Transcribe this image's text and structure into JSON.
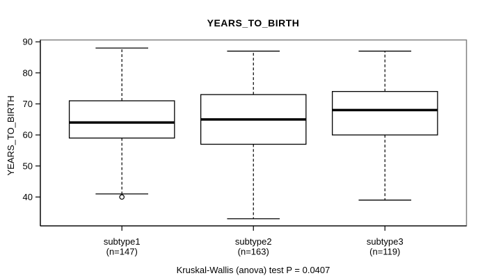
{
  "figure": {
    "title": "YEARS_TO_BIRTH",
    "y_axis_label": "YEARS_TO_BIRTH",
    "caption": "Kruskal-Wallis (anova) test P = 0.0407"
  },
  "chart_data": {
    "type": "boxplot",
    "title": "YEARS_TO_BIRTH",
    "xlabel": "",
    "ylabel": "YEARS_TO_BIRTH",
    "ylim": [
      30.7,
      90.6
    ],
    "yticks": [
      40,
      50,
      60,
      70,
      80,
      90
    ],
    "grid": false,
    "legend": "none",
    "caption": "Kruskal-Wallis (anova) test P = 0.0407",
    "p_value": 0.0407,
    "groups": [
      {
        "label": "subtype1",
        "n_label": "(n=147)",
        "n": 147,
        "whisker_low": 41,
        "q1": 59,
        "median": 64,
        "q3": 71,
        "whisker_high": 88,
        "outliers": [
          40
        ]
      },
      {
        "label": "subtype2",
        "n_label": "(n=163)",
        "n": 163,
        "whisker_low": 33,
        "q1": 57,
        "median": 65,
        "q3": 73,
        "whisker_high": 87,
        "outliers": []
      },
      {
        "label": "subtype3",
        "n_label": "(n=119)",
        "n": 119,
        "whisker_low": 39,
        "q1": 60,
        "median": 68,
        "q3": 74,
        "whisker_high": 87,
        "outliers": []
      }
    ],
    "colors": {
      "background": "#ffffff",
      "frame": "#808080",
      "axis": "#000000",
      "box_stroke": "#000000",
      "box_fill": "#ffffff",
      "median": "#000000",
      "whisker": "#000000",
      "text": "#000000"
    }
  }
}
